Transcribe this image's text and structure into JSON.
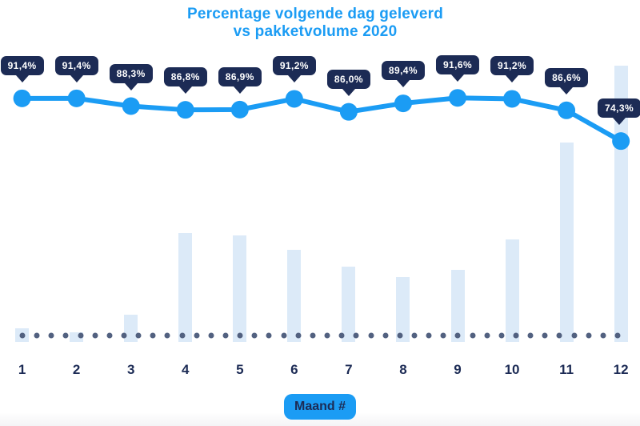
{
  "title": {
    "line1": "Percentage volgende dag geleverd",
    "line2": "vs pakketvolume 2020"
  },
  "x_axis": {
    "badge_label": "Maand #",
    "months": [
      "1",
      "2",
      "3",
      "4",
      "5",
      "6",
      "7",
      "8",
      "9",
      "10",
      "11",
      "12"
    ]
  },
  "chart_data": {
    "type": "line+bar",
    "title": "Percentage volgende dag geleverd vs pakketvolume 2020",
    "xlabel": "Maand #",
    "legend_position": "none",
    "grid": "off",
    "categories": [
      1,
      2,
      3,
      4,
      5,
      6,
      7,
      8,
      9,
      10,
      11,
      12
    ],
    "series": [
      {
        "name": "Percentage volgende dag geleverd",
        "type": "line",
        "unit": "%",
        "values": [
          91.4,
          91.4,
          88.3,
          86.8,
          86.9,
          91.2,
          86.0,
          89.4,
          91.6,
          91.2,
          86.6,
          74.3
        ],
        "labels": [
          "91,4%",
          "91,4%",
          "88,3%",
          "86,8%",
          "86,9%",
          "91,2%",
          "86,0%",
          "89,4%",
          "91,6%",
          "91,2%",
          "86,6%",
          "74,3%"
        ],
        "ylim": [
          70,
          95
        ]
      },
      {
        "name": "Pakketvolume",
        "type": "bar",
        "unit": "relative, max month = 100",
        "values": [
          4.9,
          3.5,
          9.9,
          39.4,
          38.6,
          33.3,
          27.2,
          23.5,
          26.1,
          37.1,
          72.2,
          100
        ]
      }
    ],
    "colors": {
      "accent_blue": "#1B9CF4",
      "navy": "#1C2B55",
      "bar_fill": "#DCEAF8",
      "baseline_dot": "#526180",
      "background": "#FFFFFF",
      "footer_strip": "#F4F4F6"
    }
  }
}
